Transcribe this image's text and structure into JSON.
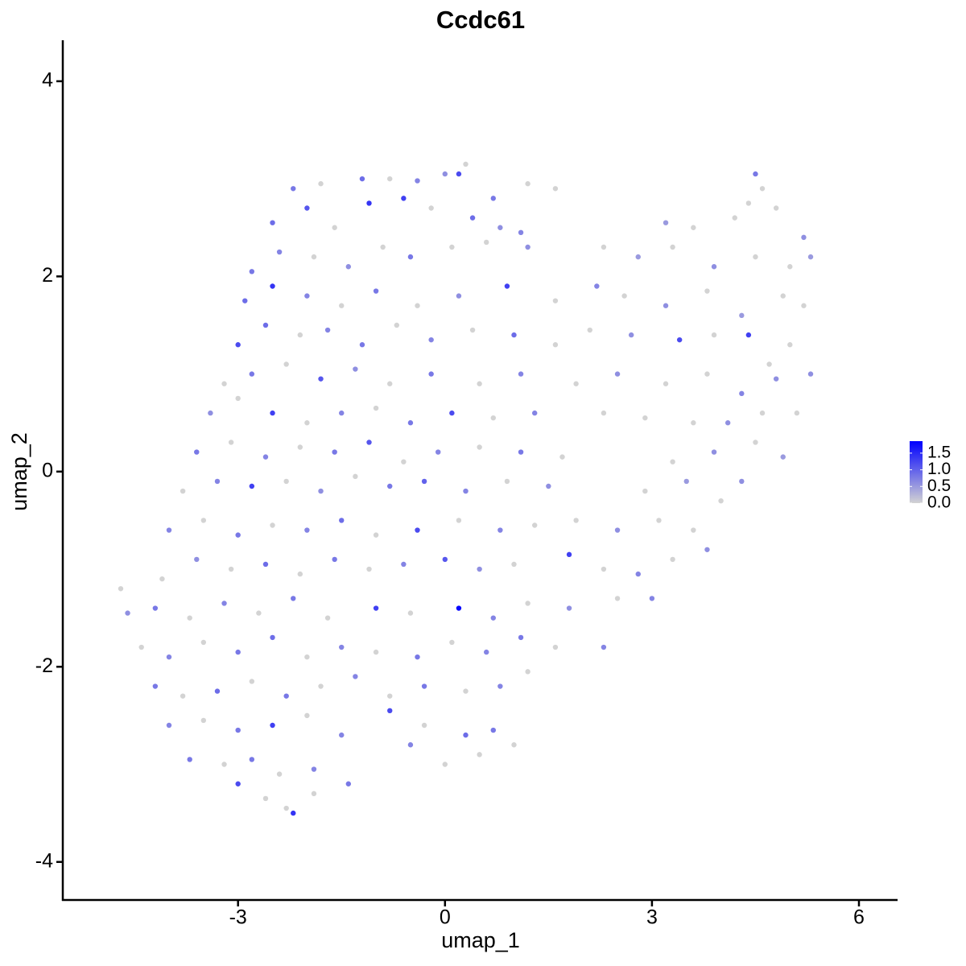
{
  "chart_data": {
    "type": "scatter",
    "title": "Ccdc61",
    "x_label": "umap_1",
    "y_label": "umap_2",
    "xlim": [
      -5.54,
      6.56
    ],
    "ylim": [
      -4.39,
      4.42
    ],
    "xticks": [
      -3,
      0,
      3,
      6
    ],
    "yticks": [
      -4,
      -2,
      0,
      2,
      4
    ],
    "color_scale": {
      "low": "#d3d3d3",
      "high": "#0000ff",
      "limits": [
        0,
        1.86
      ],
      "ticks": [
        {
          "value": 0,
          "label": "0.0"
        },
        {
          "value": 0.5,
          "label": "0.5"
        },
        {
          "value": 1,
          "label": "1.0"
        },
        {
          "value": 1.5,
          "label": "1.5"
        }
      ]
    },
    "x": [
      -2.2,
      -1.8,
      -1.2,
      -0.8,
      -0.4,
      0,
      0.2,
      0.3,
      0.7,
      1.2,
      1.6,
      4.5,
      4.6,
      -2.5,
      -2.0,
      -1.6,
      -1.1,
      -0.6,
      -0.2,
      0.4,
      0.8,
      1.1,
      3.2,
      3.6,
      4.2,
      4.8,
      5.2,
      4.4,
      -2.8,
      -2.4,
      -1.9,
      -1.4,
      -0.9,
      -0.5,
      0.1,
      0.6,
      1.2,
      2.8,
      3.3,
      3.9,
      4.5,
      5.0,
      5.3,
      2.3,
      -2.9,
      -2.5,
      -2.0,
      -1.5,
      -1.0,
      -0.4,
      0.2,
      0.9,
      1.6,
      2.2,
      2.6,
      3.2,
      3.8,
      4.3,
      4.9,
      5.2,
      -3.0,
      -2.6,
      -2.1,
      -1.7,
      -1.2,
      -0.7,
      -0.2,
      0.4,
      1.0,
      1.6,
      2.1,
      2.7,
      3.4,
      3.9,
      4.4,
      5.0,
      4.7,
      -3.2,
      -2.8,
      -2.3,
      -1.8,
      -1.3,
      -0.8,
      -0.2,
      0.5,
      1.1,
      1.9,
      2.5,
      3.2,
      3.8,
      4.3,
      4.8,
      5.3,
      -3.4,
      -3.0,
      -2.5,
      -2.0,
      -1.5,
      -1.0,
      -0.5,
      0.1,
      0.7,
      1.3,
      2.3,
      2.9,
      3.6,
      4.1,
      4.6,
      5.1,
      -3.6,
      -3.1,
      -2.6,
      -2.1,
      -1.6,
      -1.1,
      -0.6,
      -0.1,
      0.5,
      1.1,
      1.7,
      3.3,
      3.9,
      4.5,
      4.9,
      -3.8,
      -3.3,
      -2.8,
      -2.3,
      -1.8,
      -1.3,
      -0.8,
      -0.3,
      0.3,
      0.9,
      1.5,
      2.9,
      3.5,
      4.3,
      4.0,
      -4.0,
      -3.5,
      -3.0,
      -2.5,
      -2.0,
      -1.5,
      -1.0,
      -0.4,
      0.2,
      0.8,
      1.3,
      1.9,
      2.5,
      3.1,
      3.6,
      -4.1,
      -3.6,
      -3.1,
      -2.6,
      -2.1,
      -1.6,
      -1.1,
      -0.6,
      0,
      0.5,
      1.0,
      1.8,
      2.3,
      2.8,
      3.3,
      3.8,
      -4.7,
      -4.6,
      -4.2,
      -3.7,
      -3.2,
      -2.7,
      -2.2,
      -1.7,
      -1.0,
      -0.5,
      0.2,
      0.7,
      1.2,
      1.8,
      2.5,
      3.0,
      -4.4,
      -4.0,
      -3.5,
      -3.0,
      -2.5,
      -2.0,
      -1.5,
      -1.0,
      -0.4,
      0.1,
      0.6,
      1.1,
      1.6,
      2.3,
      -4.2,
      -3.8,
      -3.3,
      -2.8,
      -2.3,
      -1.8,
      -1.3,
      -0.8,
      -0.3,
      0.3,
      0.8,
      1.2,
      -4.0,
      -3.5,
      -3.0,
      -2.5,
      -2.0,
      -1.5,
      -0.8,
      -0.3,
      0.3,
      0.7,
      1.0,
      -3.7,
      -3.2,
      -2.8,
      -2.4,
      -1.9,
      -1.4,
      -0.5,
      0.0,
      0.5,
      -3.0,
      -2.6,
      -2.2,
      -2.3,
      -1.9
    ],
    "series": [
      {
        "values": [
          2.9,
          2.95,
          3.0,
          3.0,
          2.98,
          3.05,
          3.05,
          3.15,
          2.8,
          2.95,
          2.9,
          3.05,
          2.9,
          2.55,
          2.7,
          2.5,
          2.75,
          2.8,
          2.7,
          2.6,
          2.5,
          2.45,
          2.55,
          2.5,
          2.6,
          2.7,
          2.4,
          2.75,
          2.05,
          2.25,
          2.2,
          2.1,
          2.3,
          2.2,
          2.3,
          2.35,
          2.3,
          2.2,
          2.3,
          2.1,
          2.2,
          2.1,
          2.2,
          2.3,
          1.75,
          1.9,
          1.8,
          1.7,
          1.85,
          1.7,
          1.8,
          1.9,
          1.75,
          1.9,
          1.8,
          1.7,
          1.85,
          1.6,
          1.8,
          1.7,
          1.3,
          1.5,
          1.4,
          1.45,
          1.3,
          1.5,
          1.35,
          1.45,
          1.4,
          1.3,
          1.45,
          1.4,
          1.35,
          1.4,
          1.4,
          1.3,
          1.1,
          0.9,
          1.0,
          1.1,
          0.95,
          1.05,
          0.9,
          1.0,
          0.9,
          1.0,
          0.9,
          1.0,
          0.9,
          1.0,
          0.8,
          0.95,
          1.0,
          0.6,
          0.75,
          0.6,
          0.5,
          0.6,
          0.65,
          0.5,
          0.6,
          0.55,
          0.6,
          0.6,
          0.55,
          0.5,
          0.5,
          0.6,
          0.6,
          0.2,
          0.3,
          0.15,
          0.25,
          0.2,
          0.3,
          0.1,
          0.2,
          0.25,
          0.2,
          0.15,
          0.1,
          0.2,
          0.3,
          0.15,
          -0.2,
          -0.1,
          -0.15,
          -0.1,
          -0.2,
          -0.05,
          -0.15,
          -0.1,
          -0.2,
          -0.1,
          -0.15,
          -0.2,
          -0.1,
          -0.1,
          -0.3,
          -0.6,
          -0.5,
          -0.65,
          -0.55,
          -0.6,
          -0.5,
          -0.65,
          -0.6,
          -0.5,
          -0.6,
          -0.55,
          -0.5,
          -0.6,
          -0.5,
          -0.6,
          -1.1,
          -0.9,
          -1.0,
          -0.95,
          -1.05,
          -0.9,
          -1.0,
          -0.95,
          -0.9,
          -1.0,
          -0.95,
          -0.85,
          -1.0,
          -1.05,
          -0.9,
          -0.8,
          -1.2,
          -1.45,
          -1.4,
          -1.5,
          -1.35,
          -1.45,
          -1.3,
          -1.5,
          -1.4,
          -1.45,
          -1.4,
          -1.5,
          -1.35,
          -1.4,
          -1.3,
          -1.3,
          -1.8,
          -1.9,
          -1.75,
          -1.85,
          -1.7,
          -1.9,
          -1.8,
          -1.85,
          -1.9,
          -1.75,
          -1.85,
          -1.7,
          -1.8,
          -1.8,
          -2.2,
          -2.3,
          -2.25,
          -2.15,
          -2.3,
          -2.2,
          -2.1,
          -2.3,
          -2.2,
          -2.25,
          -2.2,
          -2.05,
          -2.6,
          -2.55,
          -2.65,
          -2.6,
          -2.5,
          -2.7,
          -2.45,
          -2.6,
          -2.7,
          -2.65,
          -2.8,
          -2.95,
          -3.0,
          -2.95,
          -3.1,
          -3.05,
          -3.2,
          -2.8,
          -3.0,
          -2.9,
          -3.2,
          -3.35,
          -3.5,
          -3.45,
          -3.3
        ],
        "color_values": [
          0.8,
          0,
          0.9,
          0,
          0.7,
          0.6,
          1.2,
          0,
          0.8,
          0,
          0,
          0.8,
          0,
          0.9,
          1.1,
          0,
          1.4,
          1.3,
          0,
          0.9,
          0.6,
          0.7,
          0.5,
          0,
          0,
          0,
          0.6,
          0,
          0.8,
          0.7,
          0,
          0.6,
          0,
          0.8,
          0,
          0,
          0.6,
          0.5,
          0,
          0.6,
          0,
          0,
          0.5,
          0,
          0.9,
          1.4,
          0.7,
          0,
          0.8,
          0,
          0.6,
          1.3,
          0,
          0.7,
          0,
          0.6,
          0,
          0.5,
          0,
          0,
          1.2,
          0.9,
          0,
          0.7,
          0.8,
          0,
          0.7,
          0,
          0.9,
          0,
          0,
          0.6,
          1.2,
          0,
          1.3,
          0,
          0,
          0,
          0.8,
          0,
          1.1,
          0.6,
          0,
          0.8,
          0,
          0.7,
          0,
          0.6,
          0,
          0,
          0.7,
          0.6,
          0.6,
          0.6,
          0,
          1.3,
          0,
          0.7,
          0,
          0.8,
          1.2,
          0,
          0.7,
          0,
          0,
          0,
          0.6,
          0,
          0,
          0.8,
          0,
          0.7,
          0,
          0.8,
          1.1,
          0,
          0.7,
          0,
          0.8,
          0,
          0,
          0.6,
          0,
          0.5,
          0,
          0.7,
          1.3,
          0,
          0.6,
          0,
          0.8,
          1.0,
          0.7,
          0,
          0.6,
          0,
          0.5,
          0.6,
          0,
          0.7,
          0,
          0.8,
          0,
          0.7,
          0.9,
          0,
          1.2,
          0,
          0.7,
          0,
          0,
          0.6,
          0,
          0,
          0,
          0.6,
          0,
          0.9,
          0,
          0.8,
          0,
          0.7,
          1.1,
          0.6,
          0,
          1.3,
          0,
          0.7,
          0,
          0.6,
          0,
          0.6,
          0.8,
          0,
          0.7,
          0,
          0.8,
          0,
          1.3,
          0,
          1.8,
          0.7,
          0,
          0.6,
          0,
          0.7,
          0,
          0.7,
          0,
          0.8,
          0.9,
          0,
          0.7,
          0,
          0.8,
          0,
          0.7,
          0.8,
          0,
          0.7,
          0.8,
          0,
          0.9,
          0,
          0.8,
          0,
          0.7,
          0,
          0.8,
          0,
          0.7,
          0,
          0.7,
          0,
          0.8,
          1.3,
          0,
          0.7,
          1.2,
          0,
          0.9,
          0.8,
          0,
          0.8,
          0,
          0.8,
          0,
          0.7,
          0.8,
          0.7,
          0,
          0,
          1.2,
          0,
          1.4,
          0,
          0
        ]
      }
    ]
  }
}
